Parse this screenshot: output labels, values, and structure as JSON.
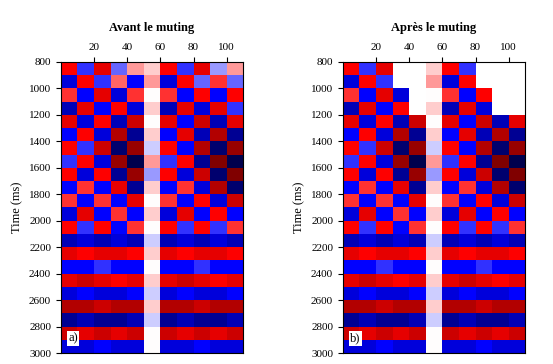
{
  "chart_data": [
    {
      "type": "heatmap",
      "title": "Avant le muting",
      "y_label": "Time (ms)",
      "panel_label": "a)",
      "xlim": [
        0,
        110
      ],
      "ylim": [
        3000,
        800
      ],
      "xticks": [
        20,
        40,
        60,
        80,
        100
      ],
      "yticks": [
        800,
        1000,
        1200,
        1400,
        1600,
        1800,
        2000,
        2200,
        2400,
        2600,
        2800,
        3000
      ],
      "x_edges": [
        0,
        10,
        20,
        30,
        40,
        50,
        60,
        70,
        80,
        90,
        100,
        110
      ],
      "y_edges": [
        800,
        900,
        1000,
        1100,
        1200,
        1300,
        1400,
        1500,
        1600,
        1700,
        1800,
        1900,
        2000,
        2100,
        2200,
        2300,
        2400,
        2500,
        2600,
        2700,
        2800,
        2900,
        3000
      ],
      "cell_range": [
        -1,
        1
      ],
      "cells": [
        [
          0.5,
          -0.4,
          0.6,
          -0.3,
          0.2,
          0.1,
          0.5,
          -0.4,
          0.6,
          -0.2,
          0.2
        ],
        [
          -0.6,
          0.5,
          -0.4,
          0.3,
          -0.5,
          0.2,
          -0.6,
          0.5,
          -0.3,
          0.4,
          -0.3
        ],
        [
          0.4,
          -0.5,
          0.6,
          -0.6,
          0.4,
          0.0,
          0.4,
          -0.5,
          0.5,
          -0.5,
          0.5
        ],
        [
          -0.7,
          0.6,
          -0.5,
          0.5,
          -0.6,
          0.1,
          -0.7,
          0.6,
          -0.6,
          0.6,
          -0.4
        ],
        [
          0.6,
          -0.6,
          0.5,
          -0.7,
          0.7,
          0.0,
          0.6,
          -0.5,
          0.7,
          -0.7,
          0.6
        ],
        [
          -0.5,
          0.5,
          -0.6,
          0.8,
          -0.8,
          0.1,
          -0.5,
          0.6,
          -0.7,
          0.8,
          -0.8
        ],
        [
          0.5,
          -0.4,
          0.7,
          -0.9,
          0.9,
          -0.1,
          0.5,
          -0.5,
          0.8,
          -0.9,
          0.9
        ],
        [
          -0.4,
          0.5,
          -0.6,
          0.9,
          -1.0,
          0.2,
          -0.4,
          0.5,
          -0.8,
          1.0,
          -1.0
        ],
        [
          0.5,
          -0.6,
          0.5,
          -0.8,
          0.9,
          -0.2,
          0.5,
          -0.6,
          0.7,
          -0.9,
          1.0
        ],
        [
          -0.5,
          0.4,
          -0.5,
          0.6,
          -0.8,
          0.1,
          -0.5,
          0.4,
          -0.6,
          0.8,
          -0.9
        ],
        [
          0.4,
          -0.5,
          0.4,
          -0.5,
          0.6,
          0.0,
          0.4,
          -0.5,
          0.5,
          -0.6,
          0.7
        ],
        [
          -0.6,
          0.6,
          -0.5,
          0.4,
          -0.5,
          0.1,
          -0.6,
          0.6,
          -0.5,
          0.5,
          -0.5
        ],
        [
          0.5,
          -0.4,
          0.5,
          -0.5,
          0.4,
          0.0,
          0.5,
          -0.4,
          0.5,
          -0.4,
          0.4
        ],
        [
          -0.7,
          -0.6,
          -0.7,
          -0.6,
          -0.7,
          -0.1,
          -0.7,
          -0.6,
          -0.7,
          -0.6,
          -0.7
        ],
        [
          0.6,
          0.5,
          0.6,
          0.6,
          0.5,
          0.1,
          0.6,
          0.5,
          0.6,
          0.6,
          0.5
        ],
        [
          -0.5,
          -0.5,
          -0.4,
          -0.5,
          -0.5,
          0.0,
          -0.5,
          -0.5,
          -0.4,
          -0.5,
          -0.5
        ],
        [
          0.6,
          0.7,
          0.6,
          0.5,
          0.6,
          0.1,
          0.6,
          0.7,
          0.6,
          0.5,
          0.6
        ],
        [
          -0.6,
          -0.5,
          -0.6,
          -0.6,
          -0.5,
          -0.1,
          -0.6,
          -0.5,
          -0.6,
          -0.6,
          -0.5
        ],
        [
          0.8,
          0.8,
          0.7,
          0.8,
          0.8,
          0.1,
          0.8,
          0.8,
          0.7,
          0.8,
          0.8
        ],
        [
          -0.8,
          -0.7,
          -0.8,
          -0.8,
          -0.7,
          -0.1,
          -0.8,
          -0.7,
          -0.8,
          -0.8,
          -0.7
        ],
        [
          0.7,
          0.6,
          0.7,
          0.6,
          0.7,
          0.0,
          0.7,
          0.6,
          0.7,
          0.6,
          0.7
        ],
        [
          -0.6,
          -0.6,
          -0.5,
          -0.6,
          -0.6,
          0.0,
          -0.6,
          -0.6,
          -0.5,
          -0.6,
          -0.6
        ]
      ]
    },
    {
      "type": "heatmap",
      "title": "Après le muting",
      "y_label": "Time (ms)",
      "panel_label": "b)",
      "xlim": [
        0,
        110
      ],
      "ylim": [
        3000,
        800
      ],
      "xticks": [
        20,
        40,
        60,
        80,
        100
      ],
      "yticks": [
        800,
        1000,
        1200,
        1400,
        1600,
        1800,
        2000,
        2200,
        2400,
        2600,
        2800,
        3000
      ],
      "x_edges": [
        0,
        10,
        20,
        30,
        40,
        50,
        60,
        70,
        80,
        90,
        100,
        110
      ],
      "y_edges": [
        800,
        900,
        1000,
        1100,
        1200,
        1300,
        1400,
        1500,
        1600,
        1700,
        1800,
        1900,
        2000,
        2100,
        2200,
        2300,
        2400,
        2500,
        2600,
        2700,
        2800,
        2900,
        3000
      ],
      "cell_range": [
        -1,
        1
      ],
      "cells": [
        [
          0.5,
          -0.4,
          0.6,
          null,
          null,
          0.1,
          0.5,
          -0.4,
          null,
          null,
          null
        ],
        [
          -0.6,
          0.5,
          -0.4,
          null,
          null,
          0.2,
          -0.6,
          0.5,
          null,
          null,
          null
        ],
        [
          0.4,
          -0.5,
          0.6,
          -0.6,
          null,
          0.0,
          0.4,
          -0.5,
          0.5,
          null,
          null
        ],
        [
          -0.7,
          0.6,
          -0.5,
          0.5,
          null,
          0.1,
          -0.7,
          0.6,
          -0.6,
          null,
          null
        ],
        [
          0.6,
          -0.6,
          0.5,
          -0.7,
          0.7,
          0.0,
          0.6,
          -0.5,
          0.7,
          -0.7,
          0.6
        ],
        [
          -0.5,
          0.5,
          -0.6,
          0.8,
          -0.8,
          0.1,
          -0.5,
          0.6,
          -0.7,
          0.8,
          -0.8
        ],
        [
          0.5,
          -0.4,
          0.7,
          -0.9,
          0.9,
          -0.1,
          0.5,
          -0.5,
          0.8,
          -0.9,
          0.9
        ],
        [
          -0.4,
          0.5,
          -0.6,
          0.9,
          -1.0,
          0.2,
          -0.4,
          0.5,
          -0.8,
          1.0,
          -1.0
        ],
        [
          0.5,
          -0.6,
          0.5,
          -0.8,
          0.9,
          -0.2,
          0.5,
          -0.6,
          0.7,
          -0.9,
          1.0
        ],
        [
          -0.5,
          0.4,
          -0.5,
          0.6,
          -0.8,
          0.1,
          -0.5,
          0.4,
          -0.6,
          0.8,
          -0.9
        ],
        [
          0.4,
          -0.5,
          0.4,
          -0.5,
          0.6,
          0.0,
          0.4,
          -0.5,
          0.5,
          -0.6,
          0.7
        ],
        [
          -0.6,
          0.6,
          -0.5,
          0.4,
          -0.5,
          0.1,
          -0.6,
          0.6,
          -0.5,
          0.5,
          -0.5
        ],
        [
          0.5,
          -0.4,
          0.5,
          -0.5,
          0.4,
          0.0,
          0.5,
          -0.4,
          0.5,
          -0.4,
          0.4
        ],
        [
          -0.7,
          -0.6,
          -0.7,
          -0.6,
          -0.7,
          -0.1,
          -0.7,
          -0.6,
          -0.7,
          -0.6,
          -0.7
        ],
        [
          0.6,
          0.5,
          0.6,
          0.6,
          0.5,
          0.1,
          0.6,
          0.5,
          0.6,
          0.6,
          0.5
        ],
        [
          -0.5,
          -0.5,
          -0.4,
          -0.5,
          -0.5,
          0.0,
          -0.5,
          -0.5,
          -0.4,
          -0.5,
          -0.5
        ],
        [
          0.6,
          0.7,
          0.6,
          0.5,
          0.6,
          0.1,
          0.6,
          0.7,
          0.6,
          0.5,
          0.6
        ],
        [
          -0.6,
          -0.5,
          -0.6,
          -0.6,
          -0.5,
          -0.1,
          -0.6,
          -0.5,
          -0.6,
          -0.6,
          -0.5
        ],
        [
          0.8,
          0.8,
          0.7,
          0.8,
          0.8,
          0.1,
          0.8,
          0.8,
          0.7,
          0.8,
          0.8
        ],
        [
          -0.8,
          -0.7,
          -0.8,
          -0.8,
          -0.7,
          -0.1,
          -0.8,
          -0.7,
          -0.8,
          -0.8,
          -0.7
        ],
        [
          0.7,
          0.6,
          0.7,
          0.6,
          0.7,
          0.0,
          0.7,
          0.6,
          0.7,
          0.6,
          0.7
        ],
        [
          -0.6,
          -0.6,
          -0.5,
          -0.6,
          -0.6,
          0.0,
          -0.6,
          -0.6,
          -0.5,
          -0.6,
          -0.6
        ]
      ]
    }
  ]
}
